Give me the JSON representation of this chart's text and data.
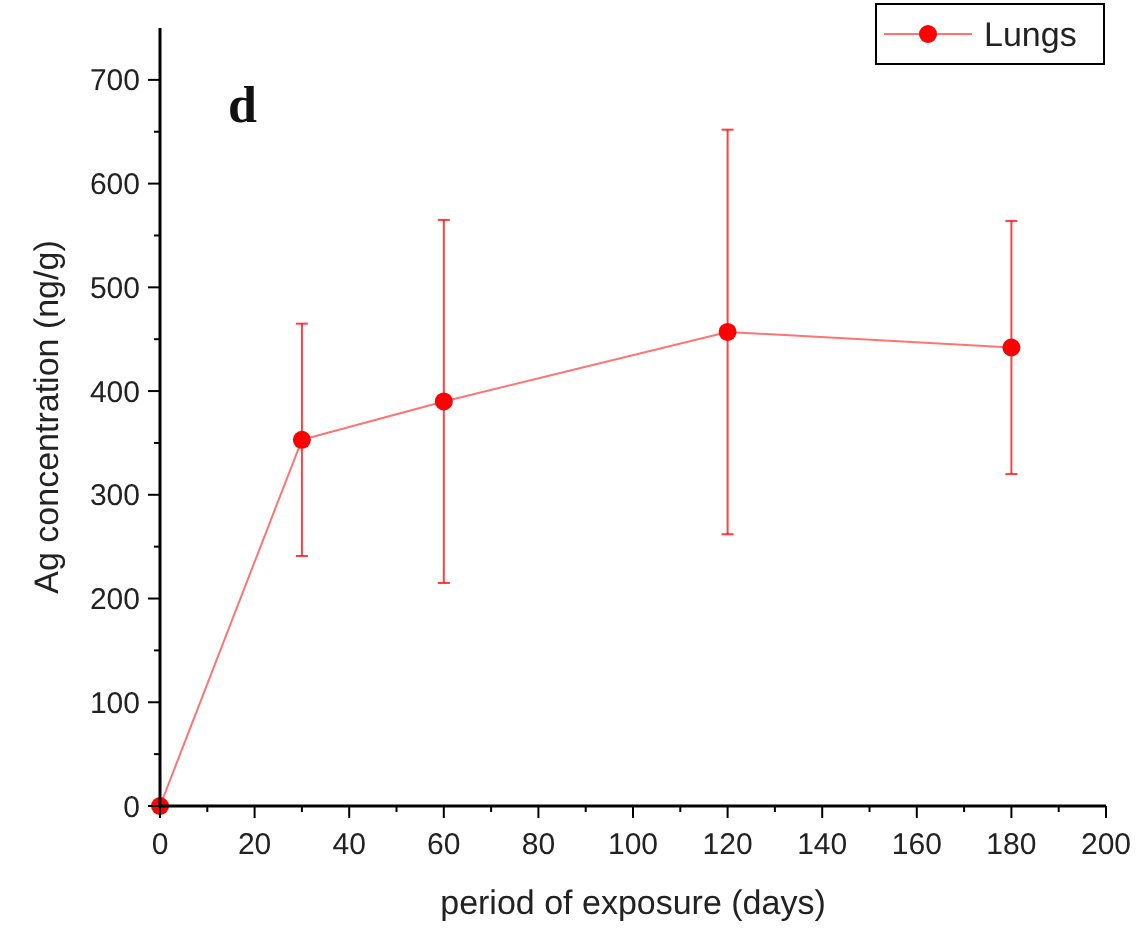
{
  "chart_data": {
    "type": "line",
    "xlabel": "period of exposure (days)",
    "ylabel": "Ag concentration (ng/g)",
    "annotations": [
      "d"
    ],
    "x": [
      0,
      30,
      60,
      120,
      180
    ],
    "series": [
      {
        "name": "Lungs",
        "color": "#ff0000",
        "values": [
          0,
          353,
          390,
          457,
          442
        ],
        "errors": [
          null,
          112,
          175,
          195,
          122
        ]
      }
    ],
    "xlim": [
      0,
      200
    ],
    "ylim": [
      0,
      750
    ],
    "xticks": [
      0,
      {
        "value": 10,
        "label": null
      },
      20,
      {
        "value": 30,
        "label": null
      },
      40,
      {
        "value": 50,
        "label": null
      },
      60,
      {
        "value": 70,
        "label": null
      },
      80,
      {
        "value": 90,
        "label": null
      },
      100,
      {
        "value": 110,
        "label": null
      },
      120,
      {
        "value": 130,
        "label": null
      },
      140,
      {
        "value": 150,
        "label": null
      },
      160,
      {
        "value": 170,
        "label": null
      },
      180,
      {
        "value": 190,
        "label": null
      },
      200
    ],
    "yticks": [
      0,
      {
        "value": 50,
        "label": null
      },
      100,
      {
        "value": 150,
        "label": null
      },
      200,
      {
        "value": 250,
        "label": null
      },
      300,
      {
        "value": 350,
        "label": null
      },
      400,
      {
        "value": 450,
        "label": null
      },
      500,
      {
        "value": 550,
        "label": null
      },
      600,
      {
        "value": 650,
        "label": null
      },
      700
    ],
    "grid": false,
    "legend": "top right",
    "marker": "circle",
    "line_style": "solid"
  }
}
